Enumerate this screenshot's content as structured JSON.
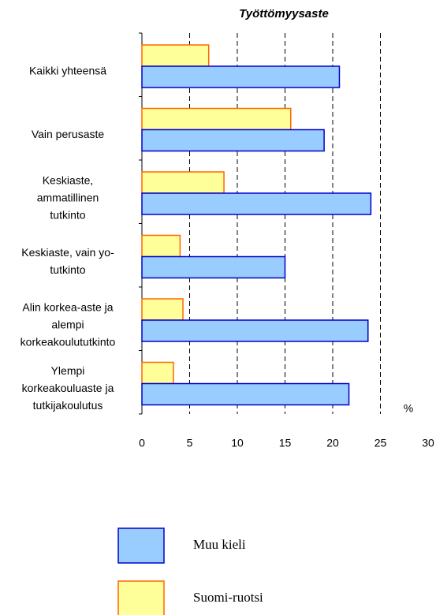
{
  "chart_data": {
    "type": "barh",
    "title": "Työttömyysaste",
    "categories": [
      "Kaikki yhteensä",
      "Vain perusaste",
      "Keskiaste,\nammatillinen\ntutkinto",
      "Keskiaste, vain yo-\ntutkinto",
      "Alin korkea-aste  ja\nalempi\nkorkeakoulututkinto",
      "Ylempi\nkorkeakouluaste ja\ntutkijakoulutus"
    ],
    "series": [
      {
        "name": "Suomi-ruotsi",
        "color": "#ffff99",
        "edge": "#ff6600",
        "values": [
          7.0,
          15.6,
          8.6,
          4.0,
          4.3,
          3.3
        ]
      },
      {
        "name": "Muu kieli",
        "color": "#99ccff",
        "edge": "#0000cc",
        "values": [
          20.7,
          19.1,
          24.0,
          15.0,
          23.7,
          21.7
        ]
      }
    ],
    "xlim": [
      0,
      30
    ],
    "xticks": [
      0,
      5,
      10,
      15,
      20,
      25,
      30
    ],
    "grid": true,
    "annotation": "%"
  }
}
